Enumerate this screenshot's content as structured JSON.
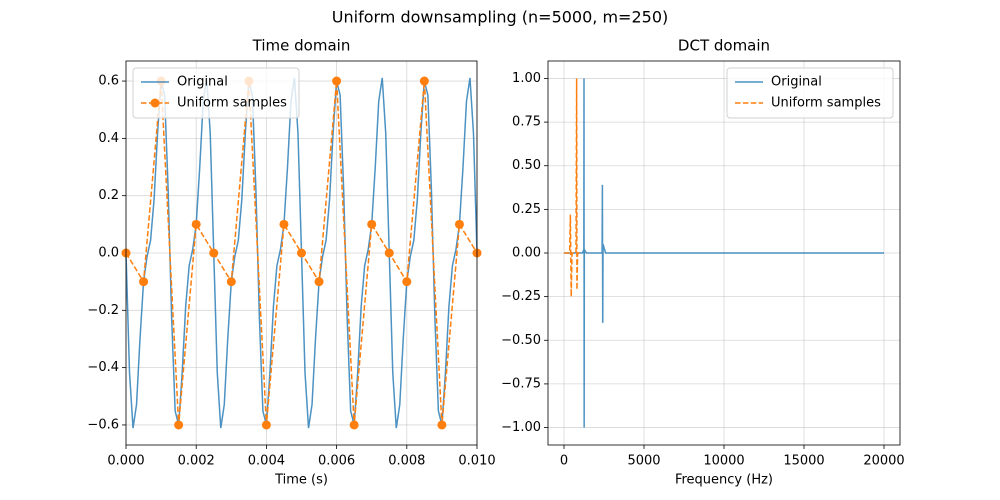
{
  "title": "Uniform downsampling (n=5000, m=250)",
  "chart_data": [
    {
      "type": "line",
      "title": "Time domain",
      "xlabel": "Time (s)",
      "xlim": [
        0,
        0.01
      ],
      "xticks": [
        {
          "value": 0,
          "label": "0.000"
        },
        {
          "value": 0.002,
          "label": "0.002"
        },
        {
          "value": 0.004,
          "label": "0.004"
        },
        {
          "value": 0.006,
          "label": "0.006"
        },
        {
          "value": 0.008,
          "label": "0.008"
        },
        {
          "value": 0.01,
          "label": "0.010"
        }
      ],
      "ylim": [
        -0.67,
        0.67
      ],
      "yticks": [
        {
          "value": -0.6,
          "label": "−0.6"
        },
        {
          "value": -0.4,
          "label": "−0.4"
        },
        {
          "value": -0.2,
          "label": "−0.2"
        },
        {
          "value": 0,
          "label": "0.0"
        },
        {
          "value": 0.2,
          "label": "0.2"
        },
        {
          "value": 0.4,
          "label": "0.4"
        },
        {
          "value": 0.6,
          "label": "0.6"
        }
      ],
      "grid": true,
      "legend": "upper left",
      "series": [
        {
          "name": "Original",
          "color": "#1f77b4",
          "linestyle": "solid",
          "x": [
            0,
            0.0001,
            0.0002,
            0.0003,
            0.0004,
            0.0005,
            0.0006,
            0.0007,
            0.0008,
            0.0009,
            0.001,
            0.0011,
            0.0012,
            0.0013,
            0.0014,
            0.0015,
            0.0016,
            0.0017,
            0.0018,
            0.0019,
            0.002,
            0.0021,
            0.0022,
            0.0023,
            0.0024,
            0.0025,
            0.0026,
            0.0027,
            0.0028,
            0.0029,
            0.003,
            0.0031,
            0.0032,
            0.0033,
            0.0034,
            0.0035,
            0.0036,
            0.0037,
            0.0038,
            0.0039,
            0.004,
            0.0041,
            0.0042,
            0.0043,
            0.0044,
            0.0045,
            0.0046,
            0.0047,
            0.0048,
            0.0049,
            0.005,
            0.0051,
            0.0052,
            0.0053,
            0.0054,
            0.0055,
            0.0056,
            0.0057,
            0.0058,
            0.0059,
            0.006,
            0.0061,
            0.0062,
            0.0063,
            0.0064,
            0.0065,
            0.0066,
            0.0067,
            0.0068,
            0.0069,
            0.007,
            0.0071,
            0.0072,
            0.0073,
            0.0074,
            0.0075,
            0.0076,
            0.0077,
            0.0078,
            0.0079,
            0.008,
            0.0081,
            0.0082,
            0.0083,
            0.0084,
            0.0085,
            0.0086,
            0.0087,
            0.0088,
            0.0089,
            0.009,
            0.0091,
            0.0092,
            0.0093,
            0.0094,
            0.0095,
            0.0096,
            0.0097,
            0.0098,
            0.0099,
            0.01
          ],
          "values": [
            0,
            -0.417,
            -0.611,
            -0.529,
            -0.297,
            -0.1,
            -0.012,
            0.044,
            0.187,
            0.419,
            0.6,
            0.551,
            0.225,
            -0.225,
            -0.551,
            -0.6,
            -0.419,
            -0.187,
            -0.044,
            0.012,
            0.1,
            0.297,
            0.529,
            0.611,
            0.417,
            0,
            -0.417,
            -0.611,
            -0.529,
            -0.297,
            -0.1,
            -0.012,
            0.044,
            0.187,
            0.419,
            0.6,
            0.551,
            0.225,
            -0.225,
            -0.551,
            -0.6,
            -0.419,
            -0.187,
            -0.044,
            0.012,
            0.1,
            0.297,
            0.529,
            0.611,
            0.417,
            0,
            -0.417,
            -0.611,
            -0.529,
            -0.297,
            -0.1,
            -0.012,
            0.044,
            0.187,
            0.419,
            0.6,
            0.551,
            0.225,
            -0.225,
            -0.551,
            -0.6,
            -0.419,
            -0.187,
            -0.044,
            0.012,
            0.1,
            0.297,
            0.529,
            0.611,
            0.417,
            0,
            -0.417,
            -0.611,
            -0.529,
            -0.297,
            -0.1,
            -0.012,
            0.044,
            0.187,
            0.419,
            0.6,
            0.551,
            0.225,
            -0.225,
            -0.551,
            -0.6,
            -0.419,
            -0.187,
            -0.044,
            0.012,
            0.1,
            0.297,
            0.529,
            0.611,
            0.417,
            0
          ]
        },
        {
          "name": "Uniform samples",
          "color": "#ff7f0e",
          "linestyle": "dashed",
          "marker": "o",
          "x": [
            0,
            0.0005,
            0.001,
            0.0015,
            0.002,
            0.0025,
            0.003,
            0.0035,
            0.004,
            0.0045,
            0.005,
            0.0055,
            0.006,
            0.0065,
            0.007,
            0.0075,
            0.008,
            0.0085,
            0.009,
            0.0095,
            0.01
          ],
          "values": [
            0,
            -0.1,
            0.6,
            -0.6,
            0.1,
            0,
            -0.1,
            0.6,
            -0.6,
            0.1,
            0,
            -0.1,
            0.6,
            -0.6,
            0.1,
            0,
            -0.1,
            0.6,
            -0.6,
            0.1,
            0
          ]
        }
      ]
    },
    {
      "type": "line",
      "title": "DCT domain",
      "xlabel": "Frequency (Hz)",
      "xlim": [
        -1000,
        21000
      ],
      "xticks": [
        0,
        5000,
        10000,
        15000,
        20000
      ],
      "ylim": [
        -1.1,
        1.1
      ],
      "yticks": [
        {
          "value": -1,
          "label": "−1.00"
        },
        {
          "value": -0.75,
          "label": "−0.75"
        },
        {
          "value": -0.5,
          "label": "−0.50"
        },
        {
          "value": -0.25,
          "label": "−0.25"
        },
        {
          "value": 0,
          "label": "0.00"
        },
        {
          "value": 0.25,
          "label": "0.25"
        },
        {
          "value": 0.5,
          "label": "0.50"
        },
        {
          "value": 0.75,
          "label": "0.75"
        },
        {
          "value": 1,
          "label": "1.00"
        }
      ],
      "grid": true,
      "legend": "upper right",
      "series": [
        {
          "name": "Original",
          "color": "#1f77b4",
          "linestyle": "solid",
          "x": [
            0,
            1150,
            1240,
            1250,
            1260,
            1270,
            1400,
            2380,
            2400,
            2420,
            2440,
            2600,
            5500,
            20000
          ],
          "values": [
            0,
            0,
            0.02,
            1.0,
            -1.0,
            0.02,
            0,
            0,
            0.39,
            -0.4,
            0.05,
            0,
            0,
            0
          ]
        },
        {
          "name": "Uniform samples",
          "color": "#ff7f0e",
          "linestyle": "dashed",
          "x": [
            0,
            350,
            400,
            450,
            500,
            750,
            790,
            810,
            850,
            1000
          ],
          "values": [
            0,
            0,
            0.22,
            -0.25,
            0,
            0,
            1.0,
            -0.21,
            0,
            0
          ]
        }
      ]
    }
  ]
}
